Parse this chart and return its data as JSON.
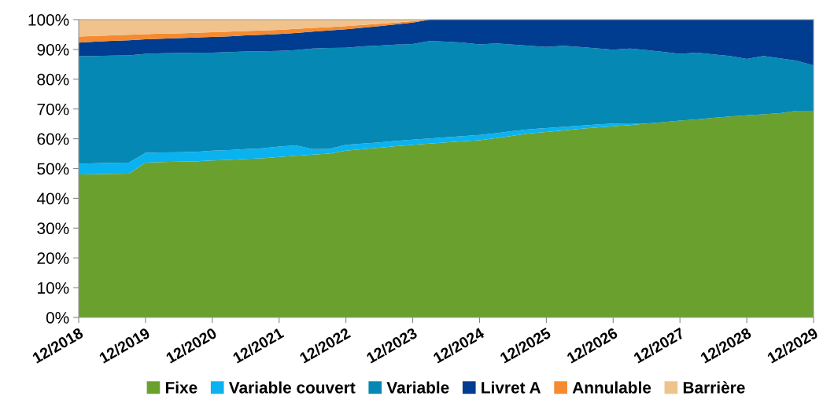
{
  "chart_data": {
    "type": "area",
    "stacked": true,
    "categories": [
      "12/2018",
      null,
      null,
      null,
      "12/2019",
      null,
      null,
      null,
      "12/2020",
      null,
      null,
      null,
      "12/2021",
      null,
      null,
      null,
      "12/2022",
      null,
      null,
      null,
      "12/2023",
      null,
      null,
      null,
      "12/2024",
      null,
      null,
      null,
      "12/2025",
      null,
      null,
      null,
      "12/2026",
      null,
      null,
      null,
      "12/2027",
      null,
      null,
      null,
      "12/2028",
      null,
      null,
      null,
      "12/2029"
    ],
    "series": [
      {
        "name": "Fixe",
        "color": "#6aa12e",
        "values": [
          48.0,
          48.1,
          48.2,
          48.3,
          52.0,
          52.2,
          52.3,
          52.4,
          52.7,
          52.9,
          53.2,
          53.4,
          53.9,
          54.3,
          54.7,
          55.0,
          56.0,
          56.5,
          57.0,
          57.5,
          58.0,
          58.4,
          58.8,
          59.2,
          59.5,
          60.2,
          61.0,
          61.8,
          62.3,
          62.8,
          63.3,
          63.8,
          64.2,
          64.6,
          65.1,
          65.6,
          66.1,
          66.5,
          67.0,
          67.5,
          67.9,
          68.2,
          68.6,
          69.4,
          69.4
        ]
      },
      {
        "name": "Variable couvert",
        "color": "#0ab3ef",
        "values": [
          3.6,
          3.7,
          3.7,
          3.7,
          3.3,
          3.2,
          3.2,
          3.2,
          3.3,
          3.3,
          3.3,
          3.4,
          3.5,
          3.5,
          1.8,
          1.6,
          2.0,
          1.9,
          1.8,
          1.8,
          1.7,
          1.7,
          1.7,
          1.7,
          1.8,
          1.7,
          1.6,
          1.4,
          1.3,
          1.2,
          1.1,
          1.0,
          0.9,
          0.6,
          0,
          0,
          0,
          0,
          0,
          0,
          0,
          0,
          0,
          0,
          0
        ]
      },
      {
        "name": "Variable",
        "color": "#0688b4",
        "values": [
          36.1,
          36.0,
          36.0,
          36.0,
          33.2,
          33.3,
          33.3,
          33.3,
          32.9,
          32.9,
          32.8,
          32.6,
          32.1,
          32.0,
          33.8,
          33.9,
          32.6,
          32.6,
          32.5,
          32.3,
          32.1,
          32.7,
          32.1,
          31.4,
          30.4,
          30.1,
          29.0,
          28.0,
          27.2,
          27.2,
          26.4,
          25.6,
          24.8,
          25.1,
          24.7,
          23.6,
          22.4,
          22.4,
          21.3,
          20.3,
          18.9,
          19.6,
          18.4,
          16.8,
          15.2
        ]
      },
      {
        "name": "Livret A",
        "color": "#003c8f",
        "values": [
          4.6,
          4.8,
          5.0,
          5.1,
          4.9,
          4.9,
          5.0,
          5.1,
          5.3,
          5.3,
          5.4,
          5.5,
          5.7,
          5.7,
          5.7,
          5.9,
          6.2,
          6.3,
          6.5,
          6.8,
          7.2,
          7.2,
          7.4,
          7.7,
          8.3,
          8.0,
          8.4,
          8.8,
          9.2,
          8.8,
          9.2,
          9.6,
          10.1,
          9.7,
          10.2,
          10.8,
          11.5,
          11.1,
          11.7,
          12.2,
          13.2,
          12.2,
          13.0,
          13.8,
          15.4
        ]
      },
      {
        "name": "Annulable",
        "color": "#f58a2f",
        "values": [
          2.0,
          1.9,
          1.8,
          1.8,
          1.7,
          1.7,
          1.6,
          1.6,
          1.6,
          1.6,
          1.5,
          1.5,
          1.4,
          1.4,
          1.2,
          1.1,
          1.0,
          0.9,
          0.8,
          0.6,
          0.5,
          0,
          0,
          0,
          0,
          0,
          0,
          0,
          0,
          0,
          0,
          0,
          0,
          0,
          0,
          0,
          0,
          0,
          0,
          0,
          0,
          0,
          0,
          0,
          0
        ]
      },
      {
        "name": "Barrière",
        "color": "#f0c28c",
        "values": [
          5.7,
          5.5,
          5.3,
          5.1,
          4.9,
          4.7,
          4.6,
          4.4,
          4.2,
          4.0,
          3.8,
          3.6,
          3.4,
          3.1,
          2.8,
          2.5,
          2.2,
          1.8,
          1.4,
          1.0,
          0.5,
          0,
          0,
          0,
          0,
          0,
          0,
          0,
          0,
          0,
          0,
          0,
          0,
          0,
          0,
          0,
          0,
          0,
          0,
          0,
          0,
          0,
          0,
          0,
          0
        ]
      }
    ],
    "ylim": [
      0,
      100
    ],
    "yticks": [
      {
        "value": 0,
        "label": "0%"
      },
      {
        "value": 10,
        "label": "10%"
      },
      {
        "value": 20,
        "label": "20%"
      },
      {
        "value": 30,
        "label": "30%"
      },
      {
        "value": 40,
        "label": "40%"
      },
      {
        "value": 50,
        "label": "50%"
      },
      {
        "value": 60,
        "label": "60%"
      },
      {
        "value": 70,
        "label": "70%"
      },
      {
        "value": 80,
        "label": "80%"
      },
      {
        "value": 90,
        "label": "90%"
      },
      {
        "value": 100,
        "label": "100%"
      }
    ],
    "grid": false,
    "legend": "bottom"
  }
}
